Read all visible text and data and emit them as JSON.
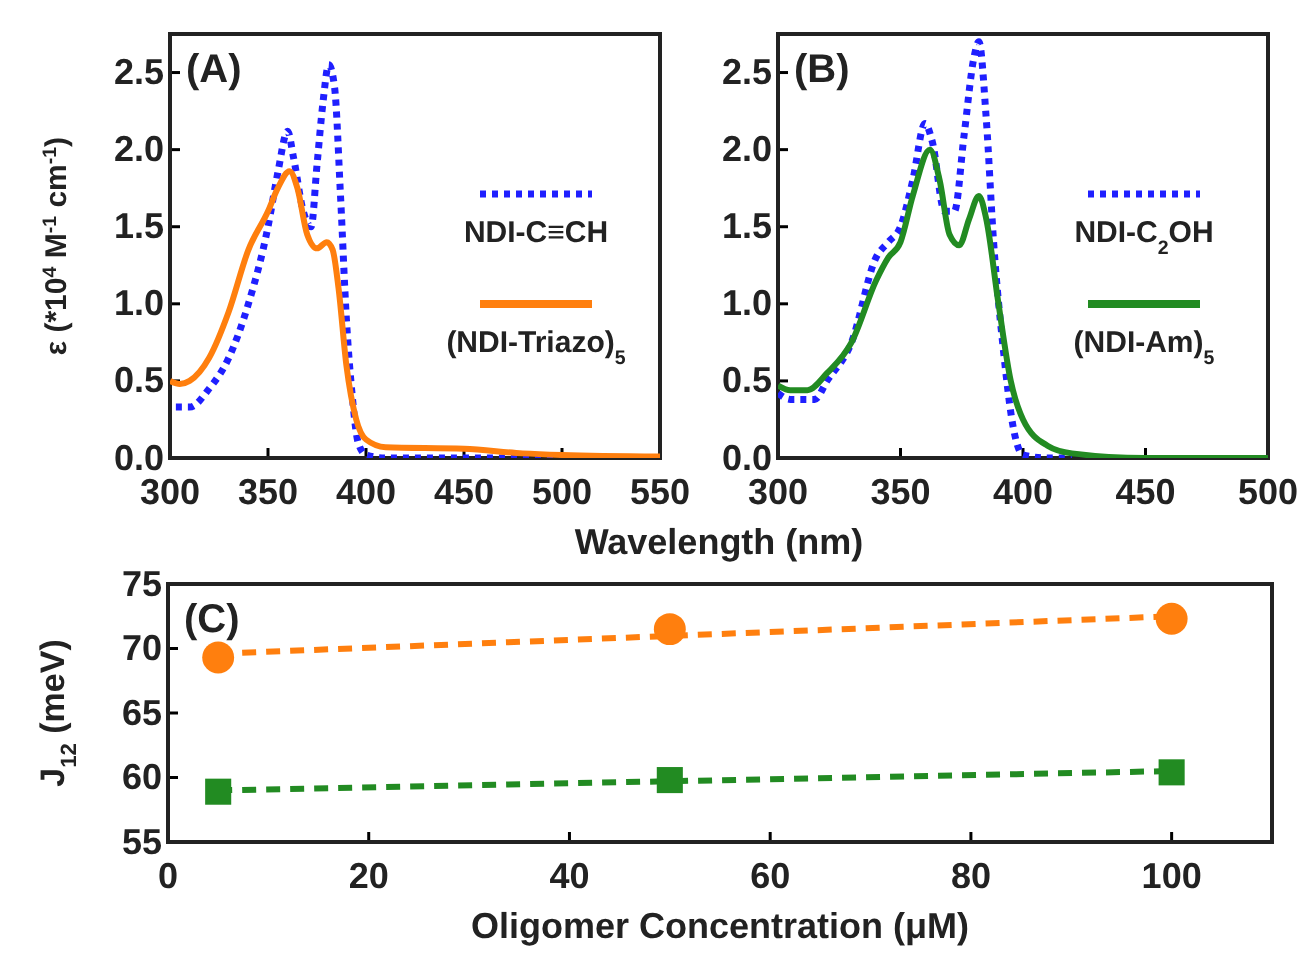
{
  "chart_data": [
    {
      "type": "line",
      "title": "(A)",
      "xlabel": "Wavelength (nm)",
      "ylabel": "ε (*10$^{4}$ M$^{-1}$ cm$^{-1}$)",
      "xlim": [
        300,
        550
      ],
      "xticks": [
        300,
        350,
        400,
        450,
        500,
        550
      ],
      "ylim": [
        0,
        2.75
      ],
      "yticks": [
        {
          "value": 0,
          "label": "0.0"
        },
        {
          "value": 0.5,
          "label": "0.5"
        },
        {
          "value": 1,
          "label": "1.0"
        },
        {
          "value": 1.5,
          "label": "1.5"
        },
        {
          "value": 2,
          "label": "2.0"
        },
        {
          "value": 2.5,
          "label": "2.5"
        }
      ],
      "legend": "right",
      "grid": false,
      "series": [
        {
          "name": "NDI-C≡CH",
          "color": "#1f1fff",
          "line_style": "dotted",
          "x": [
            303,
            310,
            320,
            330,
            340,
            350,
            355,
            360,
            363,
            368,
            372,
            375,
            378,
            381,
            384,
            387,
            390,
            393,
            396,
            400,
            410,
            450,
            500
          ],
          "values": [
            0.33,
            0.33,
            0.45,
            0.65,
            1.0,
            1.5,
            1.85,
            2.12,
            1.95,
            1.6,
            1.5,
            1.9,
            2.3,
            2.55,
            2.4,
            1.7,
            0.9,
            0.4,
            0.1,
            0.02,
            0,
            0,
            0
          ]
        },
        {
          "name": "(NDI-Triazo)$_{5}$",
          "color": "#ff7f0e",
          "line_style": "solid",
          "x": [
            300,
            305,
            310,
            320,
            330,
            340,
            350,
            355,
            361,
            365,
            370,
            375,
            380,
            383,
            386,
            390,
            395,
            400,
            410,
            450,
            480,
            500,
            550
          ],
          "values": [
            0.5,
            0.48,
            0.5,
            0.65,
            0.95,
            1.35,
            1.6,
            1.75,
            1.86,
            1.75,
            1.45,
            1.36,
            1.4,
            1.35,
            1.1,
            0.6,
            0.25,
            0.12,
            0.07,
            0.06,
            0.03,
            0.02,
            0.01
          ]
        }
      ]
    },
    {
      "type": "line",
      "title": "(B)",
      "xlim": [
        300,
        500
      ],
      "xticks": [
        300,
        350,
        400,
        450,
        500
      ],
      "ylim": [
        0,
        2.75
      ],
      "yticks": [
        {
          "value": 0,
          "label": "0.0"
        },
        {
          "value": 0.5,
          "label": "0.5"
        },
        {
          "value": 1,
          "label": "1.0"
        },
        {
          "value": 1.5,
          "label": "1.5"
        },
        {
          "value": 2,
          "label": "2.0"
        },
        {
          "value": 2.5,
          "label": "2.5"
        }
      ],
      "legend": "right",
      "grid": false,
      "series": [
        {
          "name": "NDI-C$_{2}$OH",
          "color": "#1f1fff",
          "line_style": "dotted",
          "x": [
            300,
            305,
            315,
            320,
            330,
            340,
            345,
            350,
            355,
            360,
            363,
            368,
            372,
            376,
            380,
            382,
            385,
            388,
            392,
            396,
            400,
            410,
            420
          ],
          "values": [
            0.42,
            0.38,
            0.38,
            0.5,
            0.75,
            1.3,
            1.4,
            1.5,
            1.8,
            2.17,
            2.05,
            1.6,
            1.6,
            2.1,
            2.6,
            2.7,
            2.2,
            1.4,
            0.7,
            0.2,
            0.02,
            0,
            0
          ]
        },
        {
          "name": "(NDI-Am)$_{5}$",
          "color": "#228b22",
          "line_style": "solid",
          "x": [
            300,
            305,
            312,
            320,
            330,
            340,
            345,
            350,
            355,
            362,
            366,
            370,
            374,
            378,
            382,
            385,
            390,
            395,
            400,
            410,
            420,
            450,
            500
          ],
          "values": [
            0.47,
            0.44,
            0.44,
            0.55,
            0.75,
            1.15,
            1.3,
            1.4,
            1.7,
            2.0,
            1.8,
            1.45,
            1.38,
            1.55,
            1.7,
            1.55,
            1.0,
            0.5,
            0.25,
            0.08,
            0.03,
            0,
            0
          ]
        }
      ]
    },
    {
      "type": "scatter",
      "title": "(C)",
      "xlabel": "Oligomer Concentration (μM)",
      "ylabel": "J$_{12}$ (meV)",
      "xlim": [
        0,
        110
      ],
      "xticks": [
        0,
        20,
        40,
        60,
        80,
        100
      ],
      "ylim": [
        55,
        75
      ],
      "yticks": [
        55,
        60,
        65,
        70,
        75
      ],
      "grid": false,
      "series": [
        {
          "color": "#ff7f0e",
          "marker": "circle",
          "x": [
            5,
            50,
            100
          ],
          "values": [
            69.3,
            71.5,
            72.3
          ]
        },
        {
          "color": "#ff7f0e",
          "type": "line",
          "line_style": "dashed",
          "x": [
            5,
            100
          ],
          "values": [
            69.6,
            72.5
          ]
        },
        {
          "color": "#228b22",
          "marker": "square",
          "x": [
            5,
            50,
            100
          ],
          "values": [
            58.9,
            59.8,
            60.4
          ]
        },
        {
          "color": "#228b22",
          "type": "line",
          "line_style": "dashed",
          "x": [
            5,
            100
          ],
          "values": [
            59.0,
            60.5
          ]
        }
      ]
    }
  ]
}
